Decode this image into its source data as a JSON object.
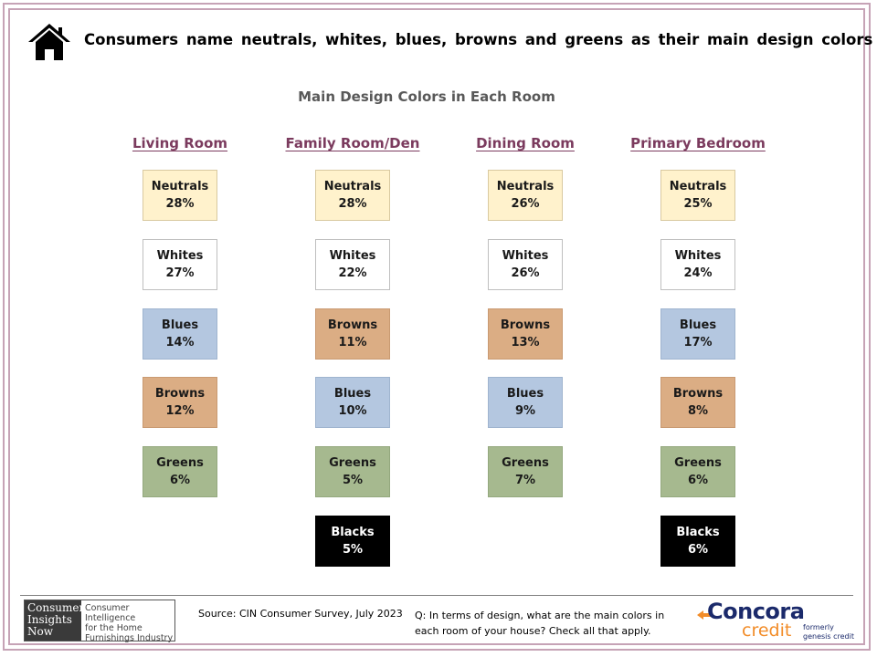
{
  "headline": "Consumers name neutrals, whites, blues, browns and greens as their main design colors",
  "subtitle": "Main Design Colors in Each Room",
  "palette": {
    "Neutrals": {
      "bg": "#fff2cc",
      "border": "#d9c9a0",
      "text": "#1a1a1a"
    },
    "Whites": {
      "bg": "#ffffff",
      "border": "#bfbfbf",
      "text": "#1a1a1a"
    },
    "Blues": {
      "bg": "#b4c7e0",
      "border": "#9fb4cf",
      "text": "#1a1a1a"
    },
    "Browns": {
      "bg": "#dbad84",
      "border": "#c99a72",
      "text": "#1a1a1a"
    },
    "Greens": {
      "bg": "#a6b98f",
      "border": "#94a87e",
      "text": "#1a1a1a"
    },
    "Blacks": {
      "bg": "#000000",
      "border": "#000000",
      "text": "#ffffff"
    }
  },
  "rooms": [
    {
      "name": "Living Room",
      "colors": [
        {
          "label": "Neutrals",
          "pct": "28%"
        },
        {
          "label": "Whites",
          "pct": "27%"
        },
        {
          "label": "Blues",
          "pct": "14%"
        },
        {
          "label": "Browns",
          "pct": "12%"
        },
        {
          "label": "Greens",
          "pct": "6%"
        }
      ]
    },
    {
      "name": "Family Room/Den",
      "colors": [
        {
          "label": "Neutrals",
          "pct": "28%"
        },
        {
          "label": "Whites",
          "pct": "22%"
        },
        {
          "label": "Browns",
          "pct": "11%"
        },
        {
          "label": "Blues",
          "pct": "10%"
        },
        {
          "label": "Greens",
          "pct": "5%"
        },
        {
          "label": "Blacks",
          "pct": "5%"
        }
      ]
    },
    {
      "name": "Dining Room",
      "colors": [
        {
          "label": "Neutrals",
          "pct": "26%"
        },
        {
          "label": "Whites",
          "pct": "26%"
        },
        {
          "label": "Browns",
          "pct": "13%"
        },
        {
          "label": "Blues",
          "pct": "9%"
        },
        {
          "label": "Greens",
          "pct": "7%"
        }
      ]
    },
    {
      "name": "Primary Bedroom",
      "colors": [
        {
          "label": "Neutrals",
          "pct": "25%"
        },
        {
          "label": "Whites",
          "pct": "24%"
        },
        {
          "label": "Blues",
          "pct": "17%"
        },
        {
          "label": "Browns",
          "pct": "8%"
        },
        {
          "label": "Greens",
          "pct": "6%"
        },
        {
          "label": "Blacks",
          "pct": "6%"
        }
      ]
    }
  ],
  "footer": {
    "cin_logo_left": [
      "Consumer",
      "Insights",
      "Now"
    ],
    "cin_logo_right": [
      "Consumer Intelligence",
      "for the Home",
      "Furnishings Industry"
    ],
    "source": "Source: CIN Consumer Survey, July 2023",
    "question": "Q: In terms of design, what are the main colors in each room of your house? Check all that apply.",
    "concora_name": "Concora",
    "concora_sub": "credit",
    "formerly": [
      "formerly",
      "genesis credit"
    ]
  },
  "icons": {
    "header": "house-icon"
  }
}
